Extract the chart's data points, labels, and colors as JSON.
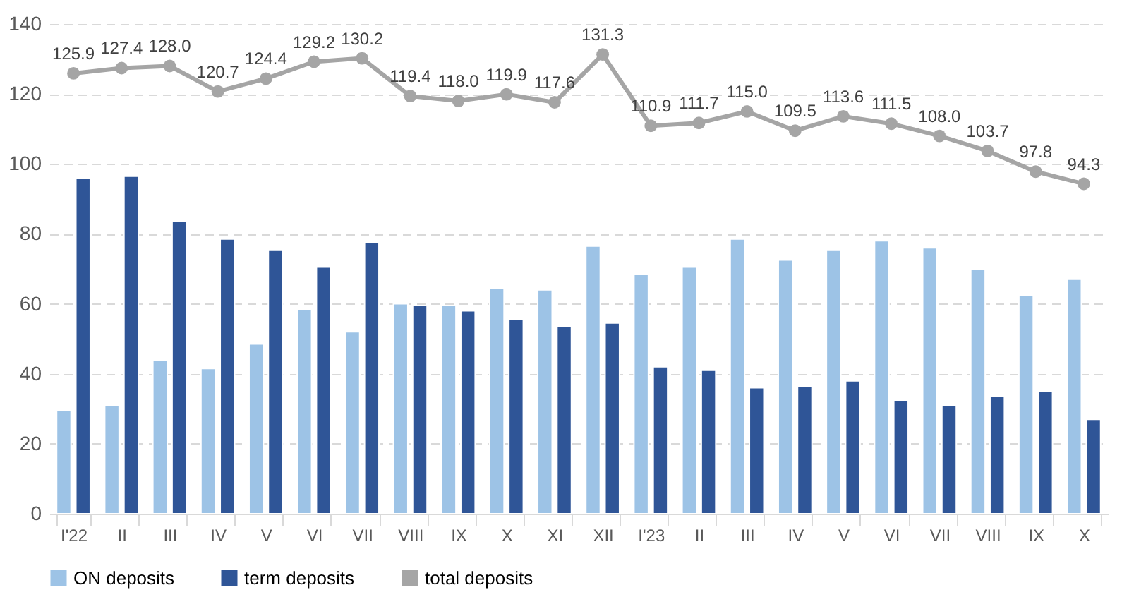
{
  "chart_data": {
    "type": "bar",
    "categories": [
      "I'22",
      "II",
      "III",
      "IV",
      "V",
      "VI",
      "VII",
      "VIII",
      "IX",
      "X",
      "XI",
      "XII",
      "I'23",
      "II",
      "III",
      "IV",
      "V",
      "VI",
      "VII",
      "VIII",
      "IX",
      "X"
    ],
    "ylim": [
      0,
      140
    ],
    "yticks": [
      0,
      20,
      40,
      60,
      80,
      100,
      120,
      140
    ],
    "grid": "y",
    "legend": "bottom",
    "marker": "circle",
    "line_style": "solid",
    "series": [
      {
        "name": "ON deposits",
        "color": "#9dc3e6",
        "values": [
          29.5,
          31,
          44,
          41.5,
          48.5,
          58.5,
          52,
          60,
          59.5,
          64.5,
          64,
          76.5,
          68.5,
          70.5,
          78.5,
          72.5,
          75.5,
          78,
          76,
          70,
          62.5,
          67
        ]
      },
      {
        "name": "term deposits",
        "color": "#2f5597",
        "values": [
          96,
          96.5,
          83.5,
          78.5,
          75.5,
          70.5,
          77.5,
          59.5,
          58,
          55.5,
          53.5,
          54.5,
          42,
          41,
          36,
          36.5,
          38,
          32.5,
          31,
          33.5,
          35,
          27
        ]
      },
      {
        "name": "total deposits",
        "type": "line",
        "color": "#a5a5a5",
        "values": [
          125.9,
          127.4,
          128.0,
          120.7,
          124.4,
          129.2,
          130.2,
          119.4,
          118.0,
          119.9,
          117.6,
          131.3,
          110.9,
          111.7,
          115.0,
          109.5,
          113.6,
          111.5,
          108.0,
          103.7,
          97.8,
          94.3
        ],
        "value_labels": [
          "125.9",
          "127.4",
          "128.0",
          "120.7",
          "124.4",
          "129.2",
          "130.2",
          "119.4",
          "118.0",
          "119.9",
          "117.6",
          "131.3",
          "110.9",
          "111.7",
          "115.0",
          "109.5",
          "113.6",
          "111.5",
          "108.0",
          "103.7",
          "97.8",
          "94.3"
        ]
      }
    ]
  }
}
